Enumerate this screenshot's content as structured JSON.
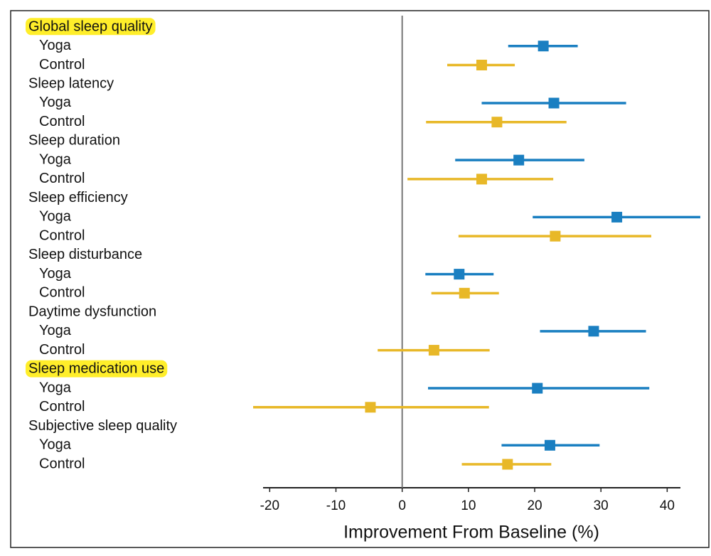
{
  "chart_data": {
    "type": "forest",
    "xlabel": "Improvement From Baseline (%)",
    "xlim": [
      -21,
      42
    ],
    "xticks": [
      -20,
      -10,
      0,
      10,
      20,
      30,
      40
    ],
    "series_colors": [
      "#1a7fc1",
      "#e8b828"
    ],
    "highlight_color": "#ffee2a",
    "groups": [
      {
        "label": "Global sleep quality",
        "highlighted": true,
        "rows": [
          {
            "name": "Yoga",
            "value": 21.3,
            "ci": [
              16,
              26.5
            ]
          },
          {
            "name": "Control",
            "value": 12,
            "ci": [
              6.8,
              17
            ]
          }
        ]
      },
      {
        "label": "Sleep latency",
        "highlighted": false,
        "rows": [
          {
            "name": "Yoga",
            "value": 22.9,
            "ci": [
              12,
              33.8
            ]
          },
          {
            "name": "Control",
            "value": 14.3,
            "ci": [
              3.6,
              24.8
            ]
          }
        ]
      },
      {
        "label": "Sleep duration",
        "highlighted": false,
        "rows": [
          {
            "name": "Yoga",
            "value": 17.6,
            "ci": [
              8,
              27.5
            ]
          },
          {
            "name": "Control",
            "value": 12,
            "ci": [
              0.8,
              22.8
            ]
          }
        ]
      },
      {
        "label": "Sleep efficiency",
        "highlighted": false,
        "rows": [
          {
            "name": "Yoga",
            "value": 32.4,
            "ci": [
              19.7,
              45
            ]
          },
          {
            "name": "Control",
            "value": 23.1,
            "ci": [
              8.5,
              37.6
            ]
          }
        ]
      },
      {
        "label": "Sleep disturbance",
        "highlighted": false,
        "rows": [
          {
            "name": "Yoga",
            "value": 8.6,
            "ci": [
              3.5,
              13.8
            ]
          },
          {
            "name": "Control",
            "value": 9.4,
            "ci": [
              4.4,
              14.6
            ]
          }
        ]
      },
      {
        "label": "Daytime dysfunction",
        "highlighted": false,
        "rows": [
          {
            "name": "Yoga",
            "value": 28.9,
            "ci": [
              20.8,
              36.8
            ]
          },
          {
            "name": "Control",
            "value": 4.8,
            "ci": [
              -3.7,
              13.2
            ]
          }
        ]
      },
      {
        "label": "Sleep medication use",
        "highlighted": true,
        "rows": [
          {
            "name": "Yoga",
            "value": 20.4,
            "ci": [
              3.9,
              37.3
            ]
          },
          {
            "name": "Control",
            "value": -4.8,
            "ci": [
              -22.5,
              13.1
            ]
          }
        ]
      },
      {
        "label": "Subjective sleep quality",
        "highlighted": false,
        "rows": [
          {
            "name": "Yoga",
            "value": 22.3,
            "ci": [
              15,
              29.8
            ]
          },
          {
            "name": "Control",
            "value": 15.9,
            "ci": [
              9,
              22.5
            ]
          }
        ]
      }
    ]
  }
}
